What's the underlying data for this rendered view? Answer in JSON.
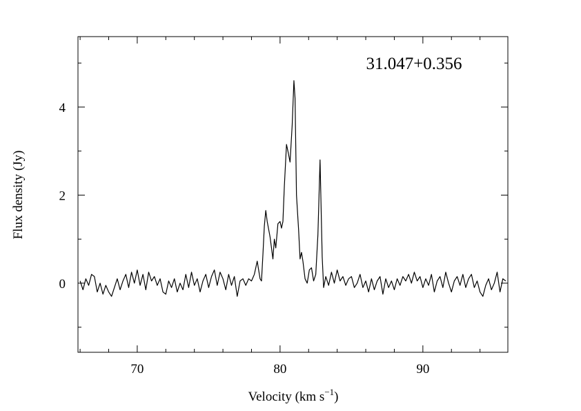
{
  "chart_data": {
    "type": "line",
    "annotation": "31.047+0.356",
    "xlabel": "Velocity (km s",
    "xlabel_sup": "−1",
    "xlabel_end": ")",
    "ylabel": "Flux density (Jy)",
    "color": "#000000",
    "xlim": [
      65.85,
      95.95
    ],
    "ylim": [
      -1.57,
      5.6
    ],
    "xticks": [
      70,
      80,
      90
    ],
    "xminorticks": [
      66,
      68,
      72,
      74,
      76,
      78,
      82,
      84,
      86,
      88,
      92,
      94
    ],
    "yticks": [
      0,
      2,
      4
    ],
    "yminorticks": [
      -1,
      1,
      3,
      5
    ],
    "x": [
      66.0,
      66.2,
      66.4,
      66.6,
      66.8,
      67.0,
      67.2,
      67.4,
      67.6,
      67.8,
      68.0,
      68.2,
      68.4,
      68.6,
      68.8,
      69.0,
      69.2,
      69.4,
      69.6,
      69.8,
      70.0,
      70.2,
      70.4,
      70.6,
      70.8,
      71.0,
      71.2,
      71.4,
      71.6,
      71.8,
      72.0,
      72.2,
      72.4,
      72.6,
      72.8,
      73.0,
      73.2,
      73.4,
      73.6,
      73.8,
      74.0,
      74.2,
      74.4,
      74.6,
      74.8,
      75.0,
      75.2,
      75.4,
      75.6,
      75.8,
      76.0,
      76.2,
      76.4,
      76.6,
      76.8,
      77.0,
      77.2,
      77.4,
      77.6,
      77.8,
      78.0,
      78.2,
      78.4,
      78.6,
      78.7,
      78.8,
      78.9,
      79.0,
      79.1,
      79.3,
      79.5,
      79.6,
      79.7,
      79.85,
      80.0,
      80.1,
      80.2,
      80.3,
      80.45,
      80.55,
      80.7,
      80.85,
      80.97,
      81.05,
      81.15,
      81.3,
      81.4,
      81.5,
      81.6,
      81.75,
      81.9,
      82.05,
      82.2,
      82.35,
      82.5,
      82.65,
      82.8,
      82.95,
      83.05,
      83.2,
      83.4,
      83.6,
      83.8,
      84.0,
      84.2,
      84.4,
      84.6,
      84.8,
      85.0,
      85.2,
      85.4,
      85.6,
      85.8,
      86.0,
      86.2,
      86.4,
      86.6,
      86.8,
      87.0,
      87.2,
      87.4,
      87.6,
      87.8,
      88.0,
      88.2,
      88.4,
      88.6,
      88.8,
      89.0,
      89.2,
      89.4,
      89.6,
      89.8,
      90.0,
      90.2,
      90.4,
      90.6,
      90.8,
      91.0,
      91.2,
      91.4,
      91.6,
      91.8,
      92.0,
      92.2,
      92.4,
      92.6,
      92.8,
      93.0,
      93.2,
      93.4,
      93.6,
      93.8,
      94.0,
      94.2,
      94.4,
      94.6,
      94.8,
      95.0,
      95.2,
      95.4,
      95.6,
      95.8
    ],
    "values": [
      0.05,
      -0.15,
      0.1,
      -0.05,
      0.2,
      0.15,
      -0.2,
      0.0,
      -0.25,
      -0.05,
      -0.2,
      -0.3,
      -0.1,
      0.1,
      -0.15,
      0.05,
      0.2,
      -0.1,
      0.25,
      0.0,
      0.3,
      -0.05,
      0.2,
      -0.15,
      0.25,
      0.05,
      0.15,
      -0.05,
      0.1,
      -0.2,
      -0.25,
      0.05,
      -0.1,
      0.1,
      -0.2,
      0.0,
      -0.15,
      0.2,
      -0.1,
      0.25,
      -0.05,
      0.1,
      -0.2,
      0.05,
      0.2,
      -0.1,
      0.15,
      0.3,
      -0.05,
      0.25,
      0.1,
      -0.15,
      0.2,
      -0.05,
      0.15,
      -0.3,
      0.05,
      0.1,
      -0.05,
      0.1,
      0.05,
      0.2,
      0.5,
      0.1,
      0.05,
      0.65,
      1.3,
      1.65,
      1.4,
      1.05,
      0.55,
      1.0,
      0.8,
      1.35,
      1.4,
      1.25,
      1.4,
      2.2,
      3.15,
      3.0,
      2.75,
      3.6,
      4.6,
      4.2,
      2.0,
      1.2,
      0.55,
      0.7,
      0.5,
      0.1,
      0.0,
      0.3,
      0.35,
      0.05,
      0.2,
      1.1,
      2.8,
      0.6,
      -0.1,
      0.15,
      -0.05,
      0.25,
      0.0,
      0.3,
      0.05,
      0.15,
      -0.05,
      0.1,
      0.15,
      -0.1,
      0.0,
      0.2,
      -0.1,
      0.05,
      -0.2,
      0.1,
      -0.15,
      0.05,
      0.15,
      -0.25,
      0.1,
      -0.1,
      0.05,
      -0.15,
      0.1,
      -0.05,
      0.15,
      0.05,
      0.2,
      0.0,
      0.25,
      0.05,
      0.15,
      -0.1,
      0.1,
      -0.05,
      0.2,
      -0.2,
      0.05,
      0.15,
      -0.1,
      0.25,
      0.0,
      -0.2,
      0.05,
      0.15,
      -0.05,
      0.2,
      -0.1,
      0.1,
      0.2,
      -0.1,
      0.05,
      -0.2,
      -0.3,
      -0.05,
      0.1,
      -0.15,
      0.0,
      0.25,
      -0.2,
      0.1,
      0.05
    ]
  }
}
